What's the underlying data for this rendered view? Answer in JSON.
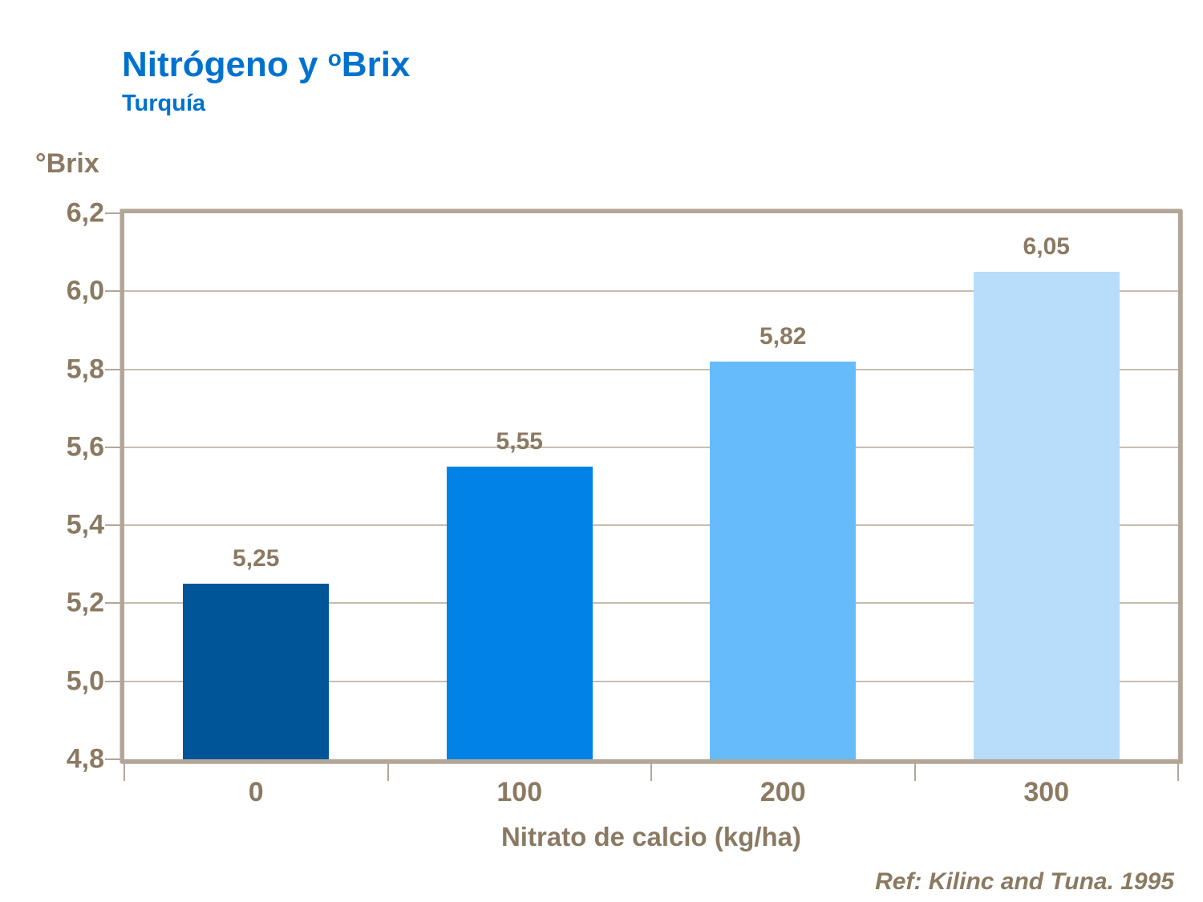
{
  "header": {
    "title_prefix": "Nitrógeno y ",
    "title_sup": "o",
    "title_rest": "Brix",
    "subtitle": "Turquía"
  },
  "chart_data": {
    "type": "bar",
    "title": "Nitrógeno y ºBrix",
    "subtitle": "Turquía",
    "categories": [
      "0",
      "100",
      "200",
      "300"
    ],
    "values": [
      5.25,
      5.55,
      5.82,
      6.05
    ],
    "value_labels": [
      "5,25",
      "5,55",
      "5,82",
      "6,05"
    ],
    "bar_colors": [
      "#005598",
      "#0082E6",
      "#66BBFA",
      "#B7DDFB"
    ],
    "xlabel": "Nitrato de calcio (kg/ha)",
    "ylabel": "°Brix",
    "ylim": [
      4.8,
      6.2
    ],
    "ytick_step": 0.2,
    "ytick_labels": [
      "4,8",
      "5,0",
      "5,2",
      "5,4",
      "5,6",
      "5,8",
      "6,0",
      "6,2"
    ],
    "grid": true,
    "legend_position": "none"
  },
  "footer": {
    "ref": "Ref: Kilinc and Tuna. 1995"
  },
  "colors": {
    "title_blue": "#0072CE",
    "text_tan": "#8B7A62",
    "axis_frame": "#B2A698",
    "gridline": "#C9BCAD"
  }
}
